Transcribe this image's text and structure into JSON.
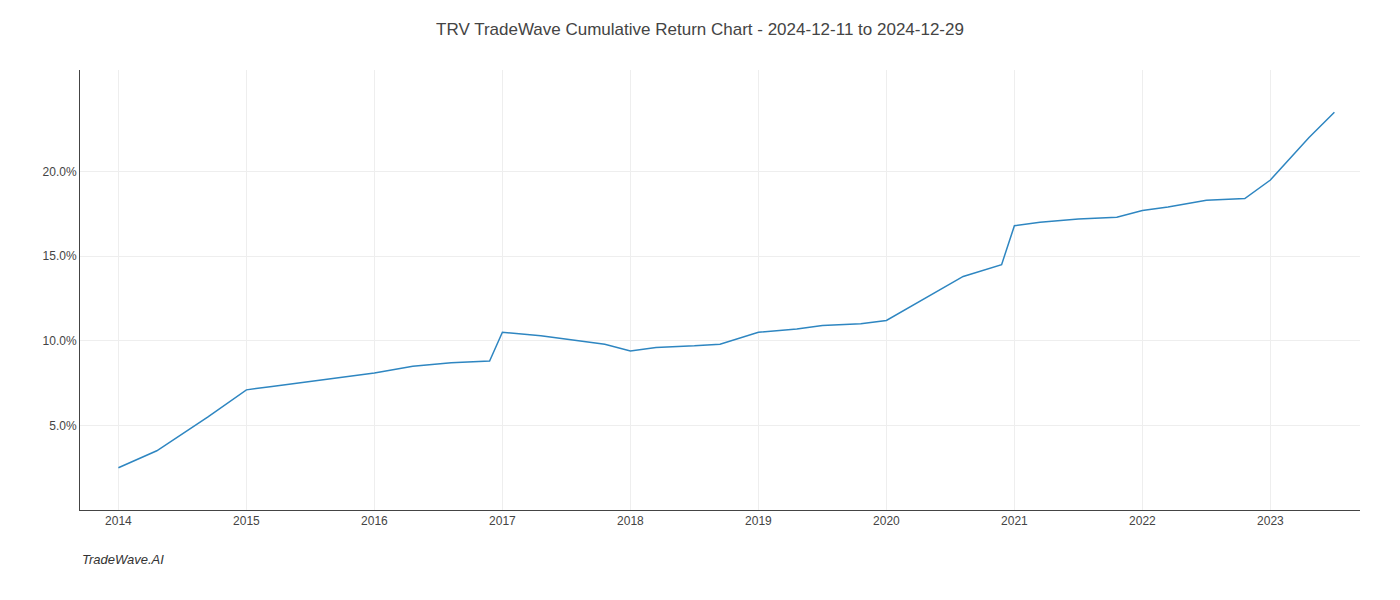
{
  "chart_data": {
    "type": "line",
    "title": "TRV TradeWave Cumulative Return Chart - 2024-12-11 to 2024-12-29",
    "annotations": [
      {
        "text": "TradeWave.AI"
      }
    ],
    "color": "#2e86c1",
    "x": [
      2014,
      2014.3,
      2014.7,
      2015.0,
      2015.2,
      2015.5,
      2015.8,
      2016.0,
      2016.3,
      2016.6,
      2016.9,
      2017.0,
      2017.3,
      2017.5,
      2017.8,
      2018.0,
      2018.2,
      2018.5,
      2018.7,
      2019.0,
      2019.3,
      2019.5,
      2019.8,
      2020.0,
      2020.3,
      2020.6,
      2020.9,
      2021.0,
      2021.2,
      2021.5,
      2021.8,
      2022.0,
      2022.2,
      2022.5,
      2022.8,
      2023.0,
      2023.3,
      2023.5
    ],
    "values": [
      2.5,
      3.5,
      5.5,
      7.1,
      7.3,
      7.6,
      7.9,
      8.1,
      8.5,
      8.7,
      8.8,
      10.5,
      10.3,
      10.1,
      9.8,
      9.4,
      9.6,
      9.7,
      9.8,
      10.5,
      10.7,
      10.9,
      11.0,
      11.2,
      12.5,
      13.8,
      14.5,
      16.8,
      17.0,
      17.2,
      17.3,
      17.7,
      17.9,
      18.3,
      18.4,
      19.5,
      22.0,
      23.5
    ],
    "xlim": [
      2013.7,
      2023.7
    ],
    "xticks": [
      2014,
      2015,
      2016,
      2017,
      2018,
      2019,
      2020,
      2021,
      2022,
      2023
    ],
    "ylim": [
      0,
      26
    ],
    "yticks": [
      {
        "value": 5.0,
        "label": "5.0%"
      },
      {
        "value": 10.0,
        "label": "10.0%"
      },
      {
        "value": 15.0,
        "label": "15.0%"
      },
      {
        "value": 20.0,
        "label": "20.0%"
      }
    ],
    "grid": true
  }
}
